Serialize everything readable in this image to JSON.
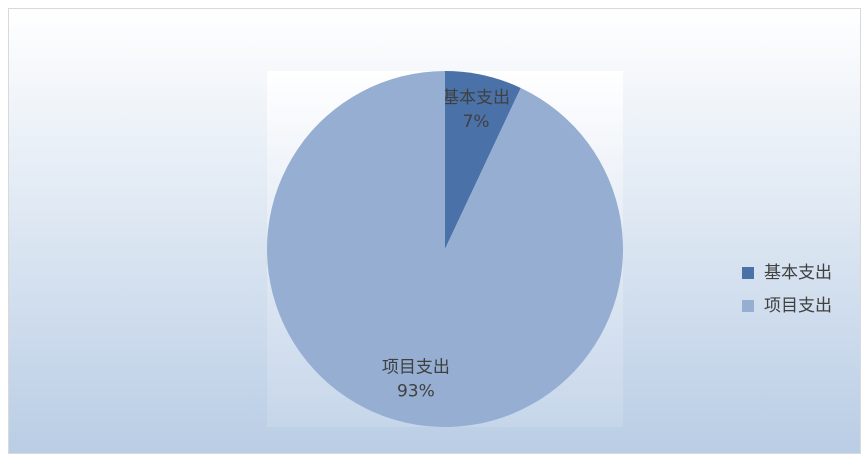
{
  "chart_data": {
    "type": "pie",
    "categories": [
      "基本支出",
      "项目支出"
    ],
    "values": [
      7,
      93
    ],
    "value_labels": [
      "7%",
      "93%"
    ],
    "colors": [
      "#4a72a8",
      "#95aed2"
    ],
    "legend": "right"
  }
}
